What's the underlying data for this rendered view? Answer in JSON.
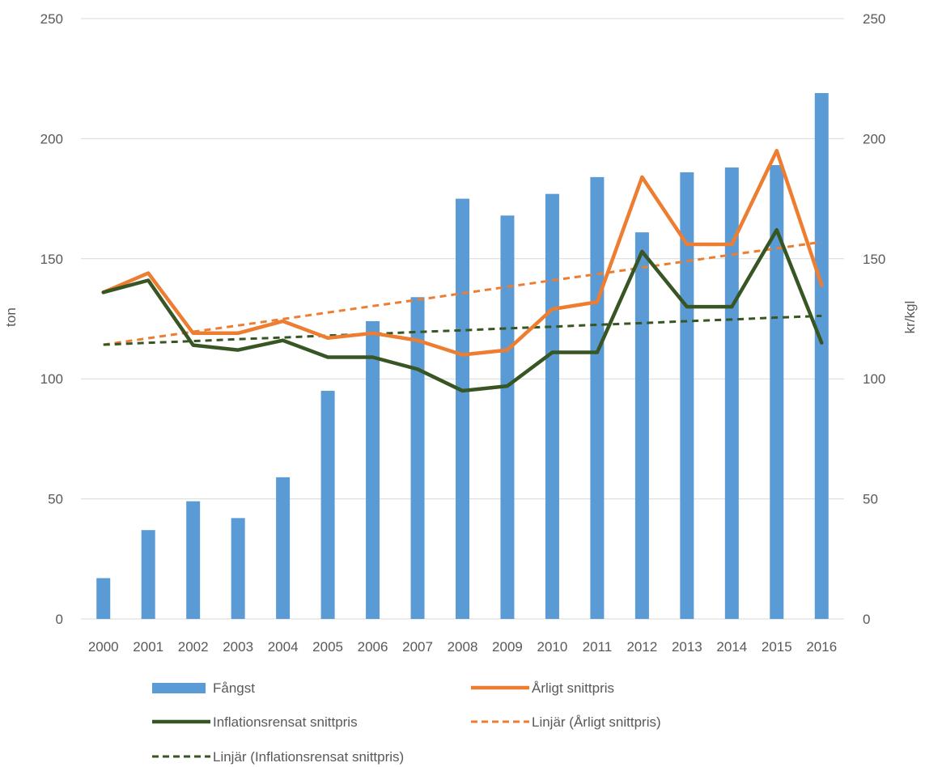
{
  "chart_data": {
    "type": "bar",
    "title": "",
    "categories": [
      "2000",
      "2001",
      "2002",
      "2003",
      "2004",
      "2005",
      "2006",
      "2007",
      "2008",
      "2009",
      "2010",
      "2011",
      "2012",
      "2013",
      "2014",
      "2015",
      "2016"
    ],
    "y_left": {
      "label": "ton",
      "min": 0,
      "max": 250,
      "ticks": [
        "0",
        "50",
        "100",
        "150",
        "200",
        "250"
      ]
    },
    "y_right": {
      "label": "kr/kgl",
      "min": 0,
      "max": 250,
      "ticks": [
        "0",
        "50",
        "100",
        "150",
        "200",
        "250"
      ]
    },
    "grid": true,
    "legend_position": "bottom",
    "series": [
      {
        "name": "Fångst",
        "kind": "bar",
        "axis": "left",
        "color": "#5B9BD5",
        "values": [
          17,
          37,
          49,
          42,
          59,
          95,
          124,
          134,
          175,
          168,
          177,
          184,
          161,
          186,
          188,
          189,
          219
        ]
      },
      {
        "name": "Årligt snittpris",
        "kind": "line",
        "axis": "right",
        "color": "#ED7D31",
        "dash": false,
        "values": [
          136,
          144,
          119,
          119,
          124,
          117,
          119,
          116,
          110,
          112,
          129,
          132,
          184,
          156,
          156,
          195,
          139
        ]
      },
      {
        "name": "Inflationsrensat snittpris",
        "kind": "line",
        "axis": "right",
        "color": "#375623",
        "dash": false,
        "values": [
          136,
          141,
          114,
          112,
          116,
          109,
          109,
          104,
          95,
          97,
          111,
          111,
          153,
          130,
          130,
          162,
          115
        ]
      },
      {
        "name": "Linjär (Årligt snittpris)",
        "kind": "line",
        "axis": "right",
        "color": "#ED7D31",
        "dash": true,
        "values": [
          114.2,
          116.9,
          119.6,
          122.2,
          124.9,
          127.6,
          130.3,
          132.9,
          135.6,
          138.3,
          141.0,
          143.6,
          146.3,
          149.0,
          151.7,
          154.3,
          157.0
        ]
      },
      {
        "name": "Linjär (Inflationsrensat snittpris)",
        "kind": "line",
        "axis": "right",
        "color": "#375623",
        "dash": true,
        "values": [
          114.2,
          115.0,
          115.7,
          116.5,
          117.2,
          118.0,
          118.7,
          119.5,
          120.2,
          121.0,
          121.7,
          122.5,
          123.2,
          124.0,
          124.7,
          125.5,
          126.2
        ]
      }
    ]
  }
}
